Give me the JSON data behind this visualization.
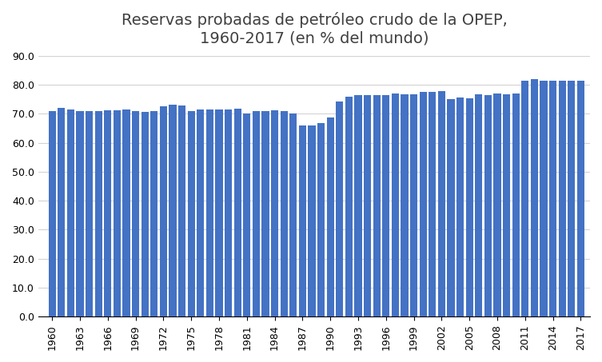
{
  "title_line1": "Reservas probadas de petróleo crudo de la OPEP,",
  "title_line2": "1960-2017 (en % del mundo)",
  "years": [
    1960,
    1961,
    1962,
    1963,
    1964,
    1965,
    1966,
    1967,
    1968,
    1969,
    1970,
    1971,
    1972,
    1973,
    1974,
    1975,
    1976,
    1977,
    1978,
    1979,
    1980,
    1981,
    1982,
    1983,
    1984,
    1985,
    1986,
    1987,
    1988,
    1989,
    1990,
    1991,
    1992,
    1993,
    1994,
    1995,
    1996,
    1997,
    1998,
    1999,
    2000,
    2001,
    2002,
    2003,
    2004,
    2005,
    2006,
    2007,
    2008,
    2009,
    2010,
    2011,
    2012,
    2013,
    2014,
    2015,
    2016,
    2017
  ],
  "values": [
    71.0,
    71.9,
    71.4,
    71.0,
    71.0,
    71.0,
    71.3,
    71.3,
    71.5,
    70.9,
    70.7,
    70.8,
    72.5,
    73.0,
    72.8,
    71.0,
    71.4,
    71.4,
    71.4,
    71.4,
    71.8,
    70.2,
    70.9,
    70.8,
    71.2,
    70.8,
    70.1,
    65.9,
    65.9,
    66.7,
    68.8,
    74.3,
    75.9,
    76.3,
    76.5,
    76.5,
    76.5,
    76.9,
    76.8,
    76.8,
    77.5,
    77.5,
    77.8,
    75.1,
    75.5,
    75.4,
    76.7,
    76.5,
    76.9,
    76.8,
    76.9,
    81.5,
    81.8,
    81.5,
    81.3,
    81.5,
    81.5,
    81.5
  ],
  "bar_color": "#4472C4",
  "background_color": "#ffffff",
  "ylim": [
    0,
    90
  ],
  "yticks": [
    0.0,
    10.0,
    20.0,
    30.0,
    40.0,
    50.0,
    60.0,
    70.0,
    80.0,
    90.0
  ],
  "xtick_years": [
    1960,
    1963,
    1966,
    1969,
    1972,
    1975,
    1978,
    1981,
    1984,
    1987,
    1990,
    1993,
    1996,
    1999,
    2002,
    2005,
    2008,
    2011,
    2014,
    2017
  ],
  "title_fontsize": 14,
  "tick_fontsize": 9,
  "grid_color": "#d3d3d3"
}
